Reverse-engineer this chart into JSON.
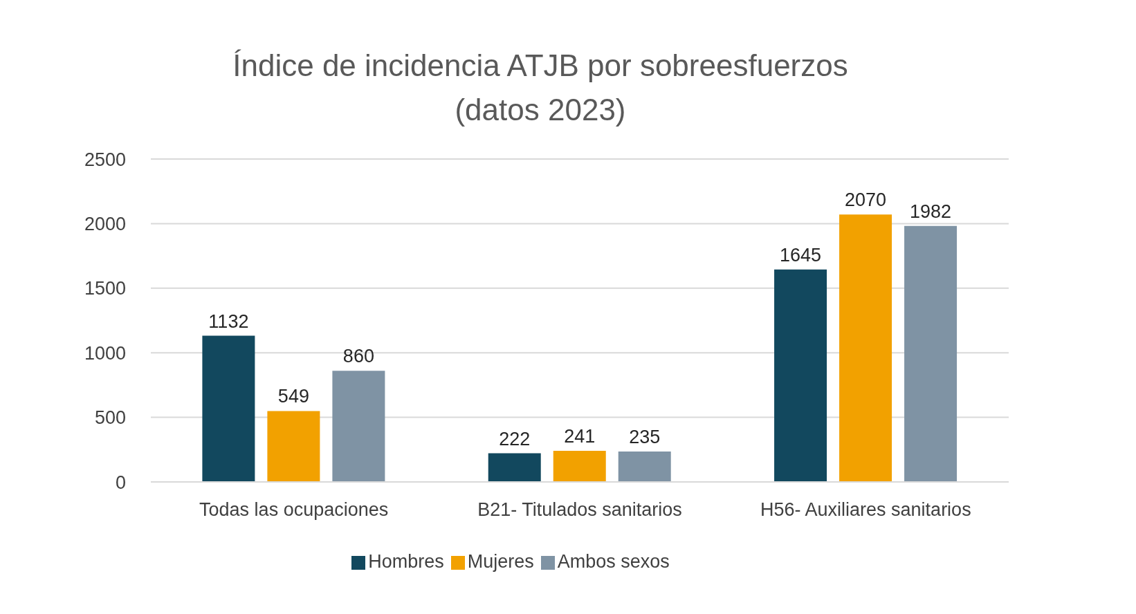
{
  "chart_data": {
    "type": "bar",
    "title": "Índice de incidencia ATJB por sobreesfuerzos\n(datos 2023)",
    "categories": [
      "Todas las ocupaciones",
      "B21- Titulados sanitarios",
      "H56- Auxiliares sanitarios"
    ],
    "series": [
      {
        "name": "Hombres",
        "color": "#12485e",
        "values": [
          1132,
          222,
          1645
        ]
      },
      {
        "name": "Mujeres",
        "color": "#f2a100",
        "values": [
          549,
          241,
          2070
        ]
      },
      {
        "name": "Ambos sexos",
        "color": "#7f93a4",
        "values": [
          860,
          235,
          1982
        ]
      }
    ],
    "ylim": [
      0,
      2500
    ],
    "yticks": [
      0,
      500,
      1000,
      1500,
      2000,
      2500
    ],
    "grid": "y",
    "legend": "bottom",
    "data_labels": true
  }
}
